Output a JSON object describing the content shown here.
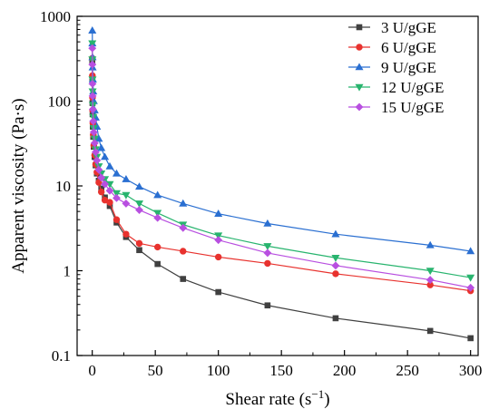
{
  "chart_data": {
    "type": "line",
    "xlabel": "Shear rate (s",
    "xlabel_sup": "−1",
    "xlabel_end": ")",
    "ylabel": "Apparent viscosity (Pa·s)",
    "xlim": [
      -12,
      306
    ],
    "ylim": [
      0.1,
      1000
    ],
    "yscale": "log",
    "grid": false,
    "legend_position": "top-right",
    "x_ticks": [
      0,
      50,
      100,
      150,
      200,
      250,
      300
    ],
    "x_tick_labels": [
      "0",
      "50",
      "100",
      "150",
      "200",
      "250",
      "300"
    ],
    "y_ticks": [
      0.1,
      1,
      10,
      100,
      1000
    ],
    "y_tick_labels": [
      "0.1",
      "1",
      "10",
      "100",
      "1000"
    ],
    "series": [
      {
        "name": "3 U/gGE",
        "color": "#404040",
        "marker": "square",
        "x": [
          0.05,
          0.1,
          0.2,
          0.3,
          0.5,
          0.8,
          1.2,
          1.9,
          2.7,
          3.7,
          5.2,
          7.2,
          10,
          13.9,
          19.3,
          26.8,
          37.3,
          51.8,
          72,
          100,
          139,
          193,
          268,
          300
        ],
        "y": [
          300,
          180,
          95,
          70,
          50,
          38,
          29,
          22,
          17.5,
          14,
          11.5,
          9.3,
          7.3,
          5.8,
          3.7,
          2.5,
          1.75,
          1.2,
          0.8,
          0.56,
          0.39,
          0.275,
          0.195,
          0.16
        ]
      },
      {
        "name": "6 U/gGE",
        "color": "#e8322e",
        "marker": "circle",
        "x": [
          0.05,
          0.1,
          0.2,
          0.3,
          0.5,
          0.8,
          1.2,
          1.9,
          2.7,
          3.7,
          5.2,
          7.2,
          10,
          13.9,
          19.3,
          26.8,
          37.3,
          51.8,
          72,
          100,
          139,
          193,
          268,
          300
        ],
        "y": [
          320,
          200,
          110,
          78,
          55,
          40,
          30,
          23,
          18,
          14.5,
          11,
          8.5,
          6.8,
          6.4,
          4.0,
          2.7,
          2.1,
          1.9,
          1.7,
          1.45,
          1.22,
          0.92,
          0.68,
          0.58
        ]
      },
      {
        "name": "9 U/gGE",
        "color": "#2a6fd1",
        "marker": "triangle-up",
        "x": [
          0.05,
          0.1,
          0.2,
          0.3,
          0.5,
          0.8,
          1.2,
          1.9,
          2.7,
          3.7,
          5.2,
          7.2,
          10,
          13.9,
          19.3,
          26.8,
          37.3,
          51.8,
          72,
          100,
          139,
          193,
          268,
          300
        ],
        "y": [
          680,
          480,
          330,
          250,
          180,
          130,
          100,
          78,
          64,
          50,
          36,
          28,
          22,
          17,
          14,
          12,
          9.8,
          7.8,
          6.2,
          4.7,
          3.6,
          2.7,
          2.0,
          1.7
        ]
      },
      {
        "name": "12 U/gGE",
        "color": "#28b46e",
        "marker": "triangle-down",
        "x": [
          0.05,
          0.1,
          0.2,
          0.3,
          0.5,
          0.8,
          1.2,
          1.9,
          2.7,
          3.7,
          5.2,
          7.2,
          10,
          13.9,
          19.3,
          26.8,
          37.3,
          51.8,
          72,
          100,
          139,
          193,
          268,
          300
        ],
        "y": [
          480,
          310,
          180,
          130,
          90,
          65,
          48,
          36,
          27,
          22,
          17,
          14,
          12,
          10.5,
          8.2,
          7.8,
          6.2,
          4.8,
          3.5,
          2.6,
          1.95,
          1.42,
          1.0,
          0.83
        ]
      },
      {
        "name": "15 U/gGE",
        "color": "#b84fe0",
        "marker": "diamond",
        "x": [
          0.05,
          0.1,
          0.2,
          0.3,
          0.5,
          0.8,
          1.2,
          1.9,
          2.7,
          3.7,
          5.2,
          7.2,
          10,
          13.9,
          19.3,
          26.8,
          37.3,
          51.8,
          72,
          100,
          139,
          193,
          268,
          300
        ],
        "y": [
          420,
          270,
          160,
          115,
          80,
          58,
          43,
          32,
          25,
          20,
          15.5,
          12.5,
          10.5,
          8.8,
          7.2,
          6.2,
          5.2,
          4.2,
          3.2,
          2.3,
          1.62,
          1.15,
          0.78,
          0.63
        ]
      }
    ]
  }
}
